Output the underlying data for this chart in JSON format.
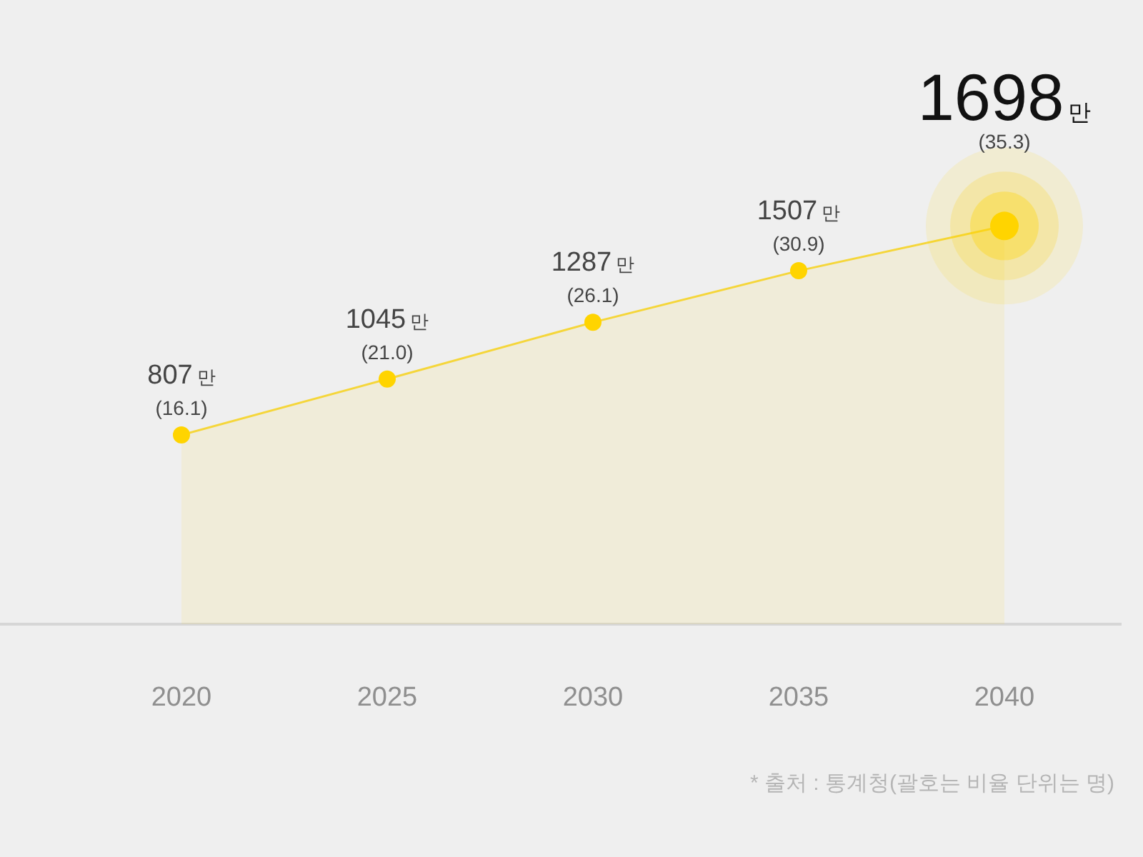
{
  "chart_data": {
    "type": "area",
    "categories": [
      "2020",
      "2025",
      "2030",
      "2035",
      "2040"
    ],
    "series": [
      {
        "color": "#f5d63a",
        "values": [
          807,
          1045,
          1287,
          1507,
          1698
        ],
        "value_labels": [
          "807만",
          "1045만",
          "1287만",
          "1507만",
          "1698만"
        ]
      }
    ],
    "marker": "circle",
    "tick_labels": "x",
    "annotations": [
      "(16.1)",
      "(21.0)",
      "(26.1)",
      "(30.9)",
      "(35.3)",
      "* 출처 : 통계청(괄호는 비율 단위는 명)"
    ]
  }
}
